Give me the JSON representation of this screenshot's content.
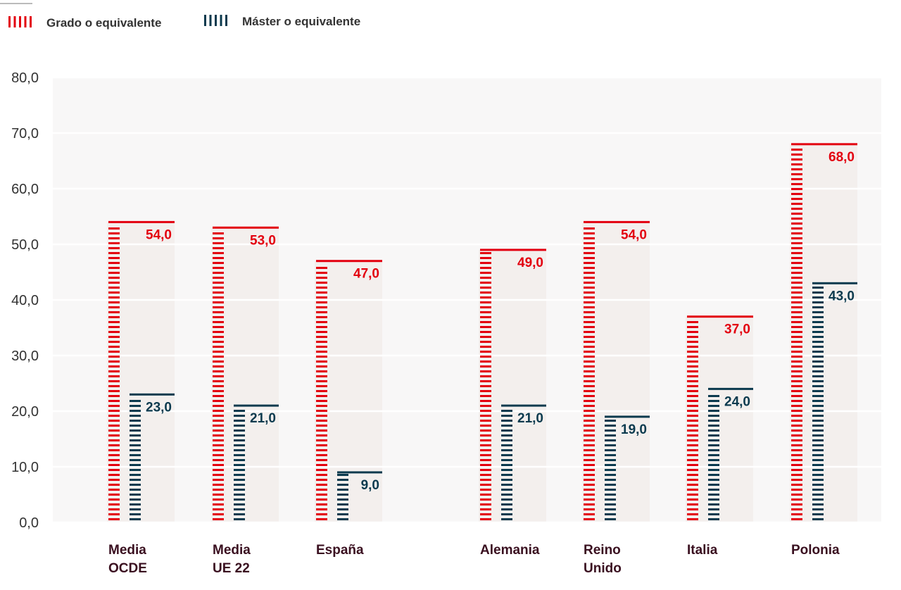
{
  "chart_data": {
    "type": "bar",
    "categories": [
      [
        "Media",
        "OCDE"
      ],
      [
        "Media",
        "UE 22"
      ],
      [
        "España"
      ],
      [
        "Alemania"
      ],
      [
        "Reino",
        "Unido"
      ],
      [
        "Italia"
      ],
      [
        "Polonia"
      ]
    ],
    "series": [
      {
        "name": "Grado o equivalente",
        "values": [
          54,
          53,
          47,
          49,
          54,
          37,
          68
        ],
        "color": "#e3000f"
      },
      {
        "name": "Máster o equivalente",
        "values": [
          23,
          21,
          9,
          21,
          19,
          24,
          43
        ],
        "color": "#0b3a4e"
      }
    ],
    "value_labels": {
      "Grado o equivalente": [
        "54,0",
        "53,0",
        "47,0",
        "49,0",
        "54,0",
        "37,0",
        "68,0"
      ],
      "Máster o equivalente": [
        "23,0",
        "21,0",
        "9,0",
        "21,0",
        "19,0",
        "24,0",
        "43,0"
      ]
    },
    "yticks": [
      "0,0",
      "10,0",
      "20,0",
      "30,0",
      "40,0",
      "50,0",
      "60,0",
      "70,0",
      "80,0"
    ],
    "ylim": [
      0,
      80
    ],
    "grid": true,
    "legend": "top-left",
    "bar_style": "dashed",
    "background_color": "#f3efed"
  }
}
